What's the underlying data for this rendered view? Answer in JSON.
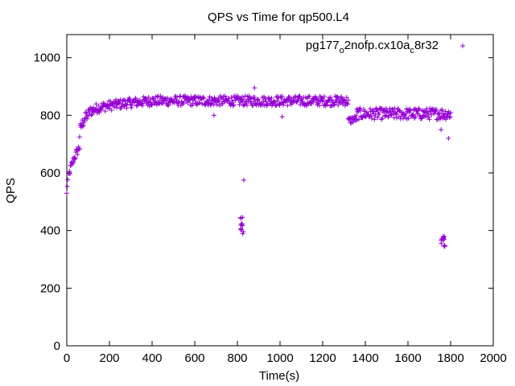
{
  "chart_data": {
    "type": "scatter",
    "title": "QPS vs Time for qp500.L4",
    "xlabel": "Time(s)",
    "ylabel": "QPS",
    "xlim": [
      0,
      2000
    ],
    "ylim": [
      0,
      1080
    ],
    "xticks": [
      0,
      200,
      400,
      600,
      800,
      1000,
      1200,
      1400,
      1600,
      1800,
      2000
    ],
    "yticks": [
      0,
      200,
      400,
      600,
      800,
      1000
    ],
    "grid": false,
    "legend": {
      "placement": "top-right",
      "marker": "+"
    },
    "series": [
      {
        "name_main": "pg177",
        "name_sub1": "o",
        "name_mid": "2nofp.cx10a",
        "name_sub2": "c",
        "name_end": "8r32",
        "color": "#9400d3",
        "marker": "+",
        "segments": [
          {
            "x": [
              0,
              60
            ],
            "y": [
              525,
              690
            ],
            "shape": "ramp",
            "spread": 30
          },
          {
            "x": [
              60,
              120
            ],
            "y": [
              730,
              820
            ],
            "shape": "ramp",
            "spread": 40
          },
          {
            "x": [
              120,
              400
            ],
            "y": [
              815,
              850
            ],
            "shape": "ramp",
            "spread": 35
          },
          {
            "x": [
              400,
              1320
            ],
            "y": [
              850,
              850
            ],
            "shape": "flat",
            "spread": 35
          },
          {
            "x": [
              1320,
              1360
            ],
            "y": [
              780,
              790
            ],
            "shape": "flat",
            "spread": 25
          },
          {
            "x": [
              1360,
              1800
            ],
            "y": [
              805,
              805
            ],
            "shape": "flat",
            "spread": 40
          },
          {
            "x": [
              815,
              830
            ],
            "y": [
              385,
              450
            ],
            "shape": "cluster",
            "spread": 0
          },
          {
            "x": [
              1755,
              1775
            ],
            "y": [
              340,
              385
            ],
            "shape": "cluster",
            "spread": 0
          }
        ],
        "outliers": [
          {
            "x": 830,
            "y": 575
          },
          {
            "x": 1790,
            "y": 720
          },
          {
            "x": 1755,
            "y": 750
          },
          {
            "x": 690,
            "y": 800
          },
          {
            "x": 880,
            "y": 895
          },
          {
            "x": 1010,
            "y": 795
          }
        ]
      }
    ]
  }
}
